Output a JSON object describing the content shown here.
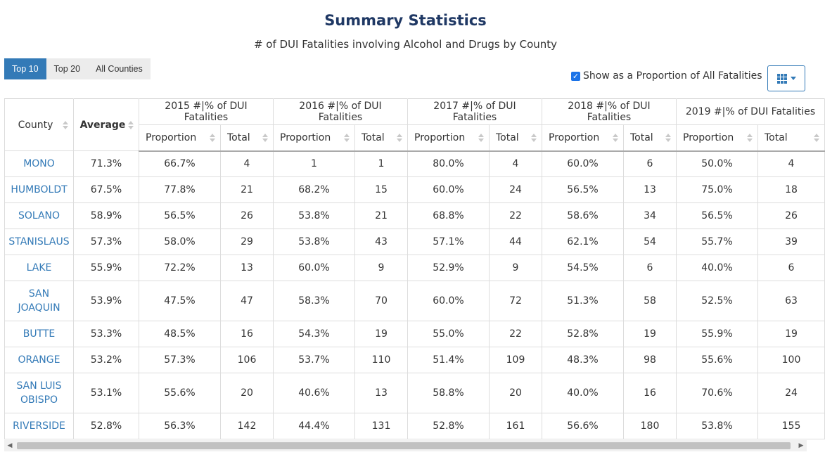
{
  "header": {
    "title": "Summary Statistics",
    "subtitle": "# of DUI Fatalities involving Alcohol and Drugs by County"
  },
  "filters": {
    "buttons": [
      {
        "label": "Top 10",
        "active": true
      },
      {
        "label": "Top 20",
        "active": false
      },
      {
        "label": "All Counties",
        "active": false
      }
    ]
  },
  "toggle": {
    "label": "Show as a Proportion of All Fatalities",
    "checked": true
  },
  "column_menu": {
    "icon": "grid-icon"
  },
  "table": {
    "col_county": "County",
    "col_average": "Average",
    "years": [
      {
        "label": "2015 #|% of DUI Fatalities",
        "proportion": "Proportion",
        "total": "Total"
      },
      {
        "label": "2016 #|% of DUI Fatalities",
        "proportion": "Proportion",
        "total": "Total"
      },
      {
        "label": "2017 #|% of DUI Fatalities",
        "proportion": "Proportion",
        "total": "Total"
      },
      {
        "label": "2018 #|% of DUI Fatalities",
        "proportion": "Proportion",
        "total": "Total"
      },
      {
        "label": "2019 #|% of DUI Fatalities",
        "proportion": "Proportion",
        "total": "Total"
      }
    ],
    "rows": [
      {
        "county": "MONO",
        "average": "71.3%",
        "values": [
          "66.7%",
          "4",
          "1",
          "1",
          "80.0%",
          "4",
          "60.0%",
          "6",
          "50.0%",
          "4"
        ]
      },
      {
        "county": "HUMBOLDT",
        "average": "67.5%",
        "values": [
          "77.8%",
          "21",
          "68.2%",
          "15",
          "60.0%",
          "24",
          "56.5%",
          "13",
          "75.0%",
          "18"
        ]
      },
      {
        "county": "SOLANO",
        "average": "58.9%",
        "values": [
          "56.5%",
          "26",
          "53.8%",
          "21",
          "68.8%",
          "22",
          "58.6%",
          "34",
          "56.5%",
          "26"
        ]
      },
      {
        "county": "STANISLAUS",
        "average": "57.3%",
        "values": [
          "58.0%",
          "29",
          "53.8%",
          "43",
          "57.1%",
          "44",
          "62.1%",
          "54",
          "55.7%",
          "39"
        ]
      },
      {
        "county": "LAKE",
        "average": "55.9%",
        "values": [
          "72.2%",
          "13",
          "60.0%",
          "9",
          "52.9%",
          "9",
          "54.5%",
          "6",
          "40.0%",
          "6"
        ]
      },
      {
        "county": "SAN JOAQUIN",
        "average": "53.9%",
        "values": [
          "47.5%",
          "47",
          "58.3%",
          "70",
          "60.0%",
          "72",
          "51.3%",
          "58",
          "52.5%",
          "63"
        ]
      },
      {
        "county": "BUTTE",
        "average": "53.3%",
        "values": [
          "48.5%",
          "16",
          "54.3%",
          "19",
          "55.0%",
          "22",
          "52.8%",
          "19",
          "55.9%",
          "19"
        ]
      },
      {
        "county": "ORANGE",
        "average": "53.2%",
        "values": [
          "57.3%",
          "106",
          "53.7%",
          "110",
          "51.4%",
          "109",
          "48.3%",
          "98",
          "55.6%",
          "100"
        ]
      },
      {
        "county": "SAN LUIS OBISPO",
        "average": "53.1%",
        "values": [
          "55.6%",
          "20",
          "40.6%",
          "13",
          "58.8%",
          "20",
          "40.0%",
          "16",
          "70.6%",
          "24"
        ]
      },
      {
        "county": "RIVERSIDE",
        "average": "52.8%",
        "values": [
          "56.3%",
          "142",
          "44.4%",
          "131",
          "52.8%",
          "161",
          "56.6%",
          "180",
          "53.8%",
          "155"
        ]
      }
    ]
  },
  "colors": {
    "accent": "#337ab7",
    "title": "#1f3864",
    "button_inactive": "#ececec"
  }
}
